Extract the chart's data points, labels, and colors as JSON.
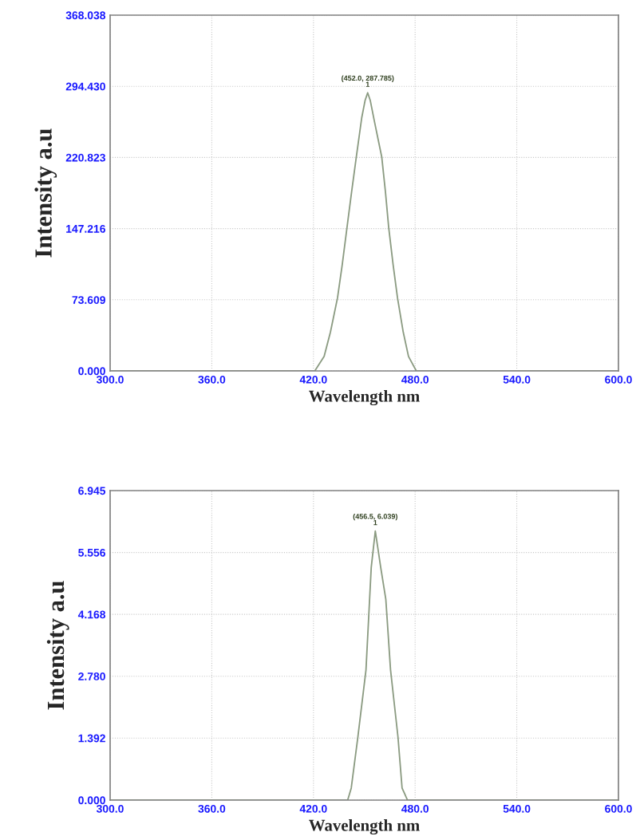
{
  "chart_data": [
    {
      "type": "line",
      "xlabel": "Wavelength nm",
      "ylabel": "Intensity a.u",
      "grid": true,
      "marker": "none",
      "line_style": "solid",
      "xlim": [
        300,
        600
      ],
      "ylim": [
        0,
        368.038
      ],
      "xticks": [
        {
          "value": 300,
          "label": "300.0"
        },
        {
          "value": 360,
          "label": "360.0"
        },
        {
          "value": 420,
          "label": "420.0"
        },
        {
          "value": 480,
          "label": "480.0"
        },
        {
          "value": 540,
          "label": "540.0"
        },
        {
          "value": 600,
          "label": "600.0"
        }
      ],
      "yticks": [
        {
          "value": 0,
          "label": "0.000"
        },
        {
          "value": 73.609,
          "label": "73.609"
        },
        {
          "value": 147.216,
          "label": "147.216"
        },
        {
          "value": 220.823,
          "label": "220.823"
        },
        {
          "value": 294.43,
          "label": "294.430"
        },
        {
          "value": 368.038,
          "label": "368.038"
        }
      ],
      "series": [
        {
          "color": "#8a9a80",
          "x": [
            300,
            420.8,
            426.3,
            430,
            434.2,
            437,
            439.8,
            442.5,
            445.3,
            448.5,
            450.5,
            452,
            453.5,
            456,
            460.3,
            462.5,
            464.4,
            467,
            469.6,
            473,
            476.1,
            480.7,
            600
          ],
          "values": [
            0,
            0,
            15,
            40,
            75.6,
            110,
            148.5,
            185,
            221.4,
            262,
            280,
            287.785,
            280,
            258,
            221.4,
            185,
            148.5,
            110,
            75.6,
            40,
            15,
            0,
            0
          ]
        }
      ],
      "annotations": [
        {
          "text": "(452.0, 287.785)\n1",
          "x": 452,
          "y": 287.785
        }
      ]
    },
    {
      "type": "line",
      "xlabel": "Wavelength nm",
      "ylabel": "Intensity a.u",
      "grid": true,
      "marker": "none",
      "line_style": "solid",
      "xlim": [
        300,
        600
      ],
      "ylim": [
        0,
        6.945
      ],
      "xticks": [
        {
          "value": 300,
          "label": "300.0"
        },
        {
          "value": 360,
          "label": "360.0"
        },
        {
          "value": 420,
          "label": "420.0"
        },
        {
          "value": 480,
          "label": "480.0"
        },
        {
          "value": 540,
          "label": "540.0"
        },
        {
          "value": 600,
          "label": "600.0"
        }
      ],
      "yticks": [
        {
          "value": 0,
          "label": "0.000"
        },
        {
          "value": 1.392,
          "label": "1.392"
        },
        {
          "value": 2.78,
          "label": "2.780"
        },
        {
          "value": 4.168,
          "label": "4.168"
        },
        {
          "value": 5.556,
          "label": "5.556"
        },
        {
          "value": 6.945,
          "label": "6.945"
        }
      ],
      "series": [
        {
          "color": "#8a9a80",
          "x": [
            300,
            440.2,
            442.3,
            446.2,
            451.0,
            454.1,
            456.5,
            459.7,
            462.7,
            465.5,
            469.9,
            472.3,
            475.5,
            600
          ],
          "values": [
            0,
            0,
            0.27,
            1.41,
            2.92,
            5.22,
            6.039,
            5.22,
            4.51,
            2.92,
            1.41,
            0.27,
            0,
            0
          ]
        }
      ],
      "annotations": [
        {
          "text": "(456.5, 6.039)\n1",
          "x": 456.5,
          "y": 6.039
        }
      ]
    }
  ]
}
